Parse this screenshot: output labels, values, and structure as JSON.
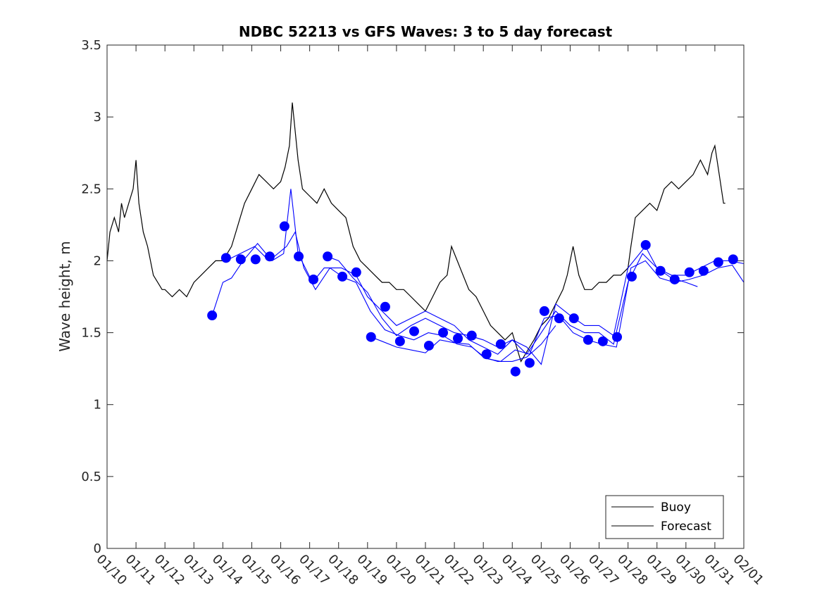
{
  "chart_data": {
    "type": "line",
    "title": "NDBC 52213 vs GFS Waves: 3 to 5 day forecast",
    "xlabel": "",
    "ylabel": "Wave height, m",
    "x_units": "days since 01/10",
    "xlim": [
      0,
      22
    ],
    "ylim": [
      0,
      3.5
    ],
    "x_tick_labels": [
      "01/10",
      "01/11",
      "01/12",
      "01/13",
      "01/14",
      "01/15",
      "01/16",
      "01/17",
      "01/18",
      "01/19",
      "01/20",
      "01/21",
      "01/22",
      "01/23",
      "01/24",
      "01/25",
      "01/26",
      "01/27",
      "01/28",
      "01/29",
      "01/30",
      "01/31",
      "02/01"
    ],
    "y_ticks": [
      0,
      0.5,
      1,
      1.5,
      2,
      2.5,
      3,
      3.5
    ],
    "y_tick_labels": [
      "0",
      "0.5",
      "1",
      "1.5",
      "2",
      "2.5",
      "3",
      "3.5"
    ],
    "legend": {
      "placement": "bottom-right",
      "entries": [
        "Buoy",
        "Forecast"
      ]
    },
    "colors": {
      "buoy": "#000000",
      "forecast": "#0000ff"
    },
    "buoy": {
      "x": [
        0,
        0.1,
        0.25,
        0.4,
        0.5,
        0.6,
        0.75,
        0.9,
        1.0,
        1.1,
        1.25,
        1.4,
        1.5,
        1.6,
        1.75,
        1.9,
        2.0,
        2.25,
        2.5,
        2.75,
        3.0,
        3.25,
        3.5,
        3.75,
        4.0,
        4.15,
        4.3,
        4.45,
        4.6,
        4.75,
        5.0,
        5.25,
        5.5,
        5.75,
        6.0,
        6.15,
        6.3,
        6.4,
        6.5,
        6.6,
        6.75,
        7.0,
        7.25,
        7.5,
        7.75,
        8.0,
        8.25,
        8.5,
        8.75,
        9.0,
        9.25,
        9.5,
        9.75,
        10.0,
        10.25,
        10.5,
        10.75,
        11.0,
        11.25,
        11.5,
        11.75,
        11.9,
        12.1,
        12.3,
        12.5,
        12.75,
        13.0,
        13.25,
        13.5,
        13.75,
        14.0,
        14.15,
        14.3,
        14.45,
        14.6,
        14.75,
        15.0,
        15.25,
        15.5,
        15.75,
        15.9,
        16.1,
        16.3,
        16.5,
        16.75,
        17.0,
        17.25,
        17.5,
        17.75,
        18.0,
        18.1,
        18.25,
        18.5,
        18.75,
        19.0,
        19.25,
        19.5,
        19.75,
        20.0,
        20.25,
        20.5,
        20.75,
        20.9,
        21.0,
        21.15,
        21.3,
        21.36
      ],
      "y": [
        2.0,
        2.2,
        2.3,
        2.2,
        2.4,
        2.3,
        2.4,
        2.5,
        2.7,
        2.4,
        2.2,
        2.1,
        2.0,
        1.9,
        1.85,
        1.8,
        1.8,
        1.75,
        1.8,
        1.75,
        1.85,
        1.9,
        1.95,
        2.0,
        2.0,
        2.05,
        2.1,
        2.2,
        2.3,
        2.4,
        2.5,
        2.6,
        2.55,
        2.5,
        2.55,
        2.65,
        2.8,
        3.1,
        2.9,
        2.7,
        2.5,
        2.45,
        2.4,
        2.5,
        2.4,
        2.35,
        2.3,
        2.1,
        2.0,
        1.95,
        1.9,
        1.85,
        1.85,
        1.8,
        1.8,
        1.75,
        1.7,
        1.65,
        1.75,
        1.85,
        1.9,
        2.1,
        2.0,
        1.9,
        1.8,
        1.75,
        1.65,
        1.55,
        1.5,
        1.45,
        1.5,
        1.4,
        1.3,
        1.35,
        1.4,
        1.45,
        1.55,
        1.6,
        1.7,
        1.8,
        1.9,
        2.1,
        1.9,
        1.8,
        1.8,
        1.85,
        1.85,
        1.9,
        1.9,
        1.95,
        2.1,
        2.3,
        2.35,
        2.4,
        2.35,
        2.5,
        2.55,
        2.5,
        2.55,
        2.6,
        2.7,
        2.6,
        2.75,
        2.8,
        2.6,
        2.4,
        2.4
      ]
    },
    "forecast_points": {
      "x": [
        3.63,
        4.11,
        4.62,
        5.13,
        5.62,
        6.13,
        6.62,
        7.13,
        7.62,
        8.13,
        8.61,
        9.12,
        9.61,
        10.12,
        10.61,
        11.12,
        11.61,
        12.12,
        12.6,
        13.11,
        13.6,
        14.11,
        14.6,
        15.11,
        15.62,
        16.13,
        16.62,
        17.13,
        17.62,
        18.13,
        18.61,
        19.12,
        19.61,
        20.12,
        20.61,
        21.12,
        21.63
      ],
      "y": [
        1.62,
        2.02,
        2.01,
        2.01,
        2.03,
        2.24,
        2.03,
        1.87,
        2.03,
        1.89,
        1.92,
        1.47,
        1.68,
        1.44,
        1.51,
        1.41,
        1.5,
        1.46,
        1.48,
        1.35,
        1.42,
        1.23,
        1.29,
        1.65,
        1.6,
        1.6,
        1.45,
        1.44,
        1.47,
        1.89,
        2.11,
        1.93,
        1.87,
        1.92,
        1.93,
        1.99,
        2.01
      ]
    },
    "forecast_lines": [
      {
        "x": [
          3.63,
          4.0,
          4.3,
          4.7,
          5.2,
          5.7,
          6.1,
          6.35,
          6.6,
          7.1,
          7.5,
          8.1,
          8.6,
          9.0,
          9.5,
          10.0,
          10.5,
          11.0,
          11.5,
          12.0,
          12.5,
          13.0,
          13.5,
          14.0,
          14.5,
          15.0,
          15.5,
          16.0,
          16.5,
          17.0,
          17.5,
          18.0,
          18.5,
          19.0,
          19.5,
          20.0,
          20.5,
          21.0,
          21.5,
          22.0
        ],
        "y": [
          1.62,
          1.85,
          1.88,
          2.0,
          2.12,
          2.0,
          2.05,
          2.5,
          2.05,
          1.85,
          1.95,
          1.95,
          1.9,
          1.75,
          1.65,
          1.55,
          1.6,
          1.65,
          1.6,
          1.55,
          1.45,
          1.4,
          1.35,
          1.45,
          1.35,
          1.5,
          1.65,
          1.55,
          1.5,
          1.5,
          1.42,
          1.85,
          2.05,
          1.95,
          1.9,
          1.9,
          1.95,
          2.0,
          2.0,
          1.98
        ]
      },
      {
        "x": [
          4.1,
          4.6,
          5.1,
          5.6,
          6.2,
          6.5,
          6.8,
          7.2,
          7.7,
          8.2,
          8.6,
          9.1,
          9.6,
          10.1,
          10.6,
          11.1,
          11.6,
          12.1,
          12.6,
          13.1,
          13.6,
          14.1,
          14.6,
          15.1,
          15.6,
          16.1,
          16.6,
          17.1,
          17.6,
          18.1,
          18.6,
          19.1,
          19.6,
          20.1,
          20.6,
          21.1,
          21.6,
          22.0
        ],
        "y": [
          2.0,
          2.05,
          2.1,
          2.0,
          2.1,
          2.2,
          1.95,
          1.8,
          1.95,
          1.88,
          1.85,
          1.65,
          1.52,
          1.48,
          1.45,
          1.5,
          1.48,
          1.42,
          1.4,
          1.32,
          1.3,
          1.38,
          1.35,
          1.6,
          1.62,
          1.5,
          1.45,
          1.42,
          1.4,
          1.95,
          2.0,
          1.88,
          1.85,
          1.87,
          1.9,
          1.95,
          1.97,
          1.85
        ]
      },
      {
        "x": [
          9.12,
          9.5,
          10.0,
          10.5,
          11.0,
          11.5,
          12.0,
          12.5,
          13.0,
          13.5,
          14.0,
          14.5,
          15.0,
          15.5
        ],
        "y": [
          1.47,
          1.44,
          1.4,
          1.38,
          1.36,
          1.45,
          1.43,
          1.42,
          1.33,
          1.3,
          1.3,
          1.33,
          1.42,
          1.55
        ]
      },
      {
        "x": [
          7.6,
          8.0,
          8.5,
          9.0,
          9.5,
          10.0,
          10.5,
          11.0,
          11.5,
          12.0,
          12.5,
          13.0,
          13.5,
          14.0,
          14.5,
          15.0,
          15.5,
          16.0,
          16.5,
          17.0,
          17.5,
          18.0,
          18.6,
          19.0,
          19.5,
          20.0,
          20.4
        ],
        "y": [
          2.03,
          2.0,
          1.88,
          1.78,
          1.6,
          1.48,
          1.55,
          1.6,
          1.55,
          1.5,
          1.48,
          1.45,
          1.4,
          1.45,
          1.4,
          1.28,
          1.7,
          1.62,
          1.55,
          1.55,
          1.48,
          1.95,
          2.1,
          1.95,
          1.88,
          1.85,
          1.82
        ]
      }
    ]
  }
}
